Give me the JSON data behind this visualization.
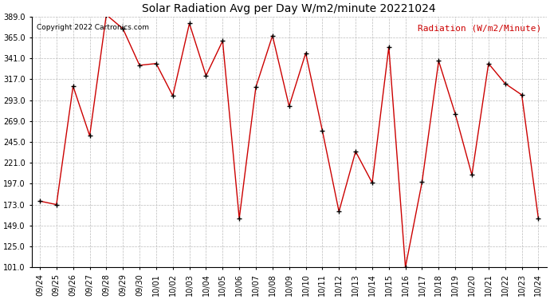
{
  "title": "Solar Radiation Avg per Day W/m2/minute 20221024",
  "copyright_text": "Copyright 2022 Cartronics.com",
  "legend_label": "Radiation (W/m2/Minute)",
  "dates": [
    "09/24",
    "09/25",
    "09/26",
    "09/27",
    "09/28",
    "09/29",
    "09/30",
    "10/01",
    "10/02",
    "10/03",
    "10/04",
    "10/05",
    "10/06",
    "10/07",
    "10/08",
    "10/09",
    "10/10",
    "10/11",
    "10/12",
    "10/13",
    "10/14",
    "10/15",
    "10/16",
    "10/17",
    "10/18",
    "10/19",
    "10/20",
    "10/21",
    "10/22",
    "10/23",
    "10/24"
  ],
  "values": [
    177,
    173,
    309,
    252,
    391,
    375,
    333,
    335,
    298,
    381,
    321,
    361,
    157,
    308,
    367,
    286,
    347,
    258,
    165,
    234,
    198,
    354,
    101,
    199,
    338,
    277,
    207,
    335,
    312,
    299,
    157
  ],
  "line_color": "#cc0000",
  "marker": "+",
  "marker_color": "black",
  "ylim": [
    101.0,
    389.0
  ],
  "yticks": [
    101.0,
    125.0,
    149.0,
    173.0,
    197.0,
    221.0,
    245.0,
    269.0,
    293.0,
    317.0,
    341.0,
    365.0,
    389.0
  ],
  "background_color": "#ffffff",
  "grid_color": "#bbbbbb",
  "title_fontsize": 10,
  "axis_fontsize": 7,
  "copyright_fontsize": 6.5,
  "legend_fontsize": 8
}
